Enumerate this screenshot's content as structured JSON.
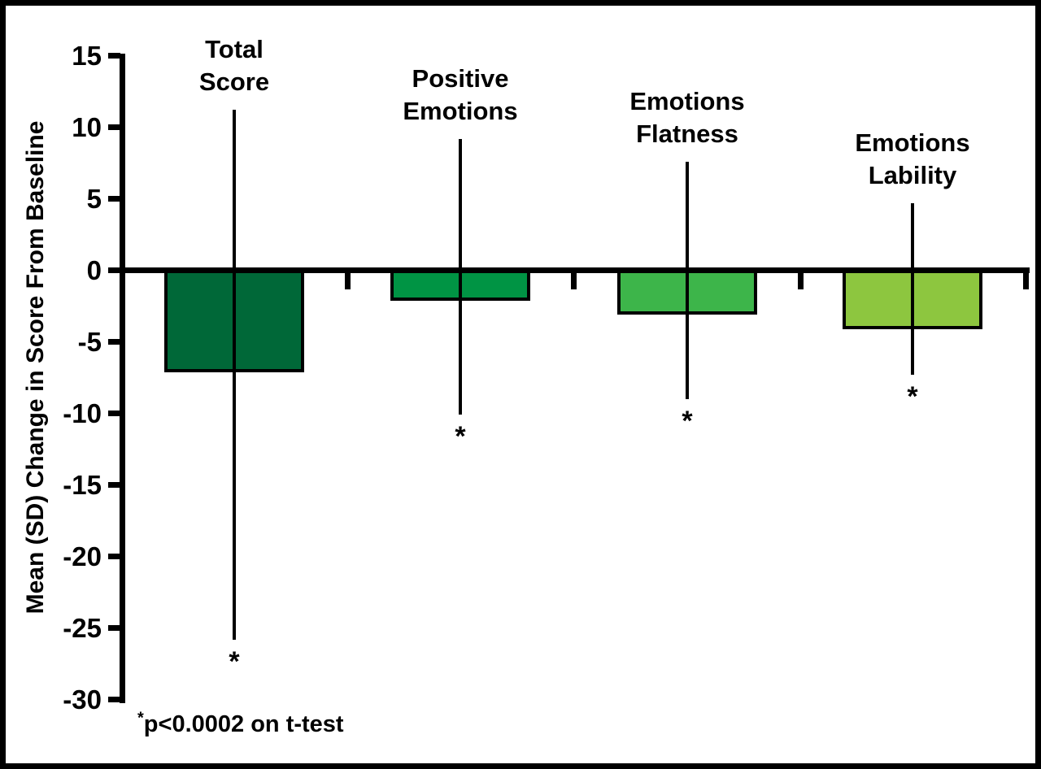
{
  "figure": {
    "ylabel": "Mean (SD) Change in Score From Baseline",
    "footnote_star": "*",
    "footnote_text": "p<0.0002 on t-test"
  },
  "chart_data": {
    "type": "bar",
    "title": "",
    "xlabel": "",
    "ylabel": "Mean (SD) Change in Score From Baseline",
    "categories": [
      "Total Score",
      "Positive Emotions",
      "Emotions Flatness",
      "Emotions Lability"
    ],
    "category_label_lines": [
      [
        "Total",
        "Score"
      ],
      [
        "Positive",
        "Emotions"
      ],
      [
        "Emotions",
        "Flatness"
      ],
      [
        "Emotions",
        "Lability"
      ]
    ],
    "values": [
      -7,
      -2,
      -3,
      -4
    ],
    "error_bar_top_values": [
      11.2,
      9.2,
      7.6,
      4.7
    ],
    "error_bar_bottom_values": [
      -25.8,
      -10.1,
      -9.0,
      -7.3
    ],
    "significance_markers": [
      "*",
      "*",
      "*",
      "*"
    ],
    "bar_colors": [
      "#006838",
      "#009444",
      "#3DB54A",
      "#8DC63F"
    ],
    "bar_border_color": "#000000",
    "axis_color": "#000000",
    "y_ticks": [
      15,
      10,
      5,
      0,
      -5,
      -10,
      -15,
      -20,
      -25,
      -30
    ],
    "ylim": [
      -30,
      15
    ],
    "grid": false,
    "legend": false,
    "footnote": "*p<0.0002 on t-test"
  }
}
